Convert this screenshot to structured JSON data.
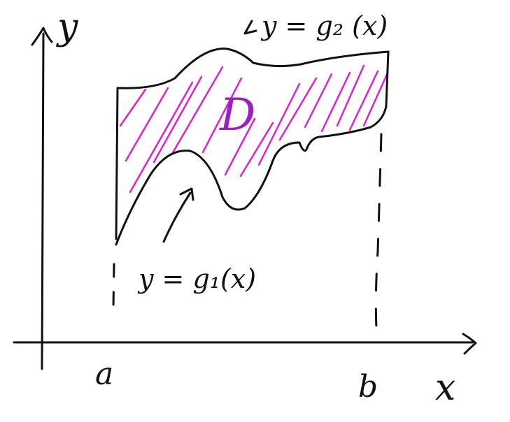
{
  "colors": {
    "ink": "#111111",
    "accent": "#e020d0",
    "region_label": "#9a1fc4",
    "background": "#ffffff"
  },
  "axes": {
    "y_label": "y",
    "x_label": "x"
  },
  "bounds": {
    "left": "a",
    "right": "b"
  },
  "curves": {
    "upper_label": "y = g₂ (x)",
    "lower_label": "y = g₁(x)"
  },
  "region": {
    "label": "D",
    "fill_style": "diagonal-hatch"
  },
  "icons": [
    "arrow-icon"
  ]
}
